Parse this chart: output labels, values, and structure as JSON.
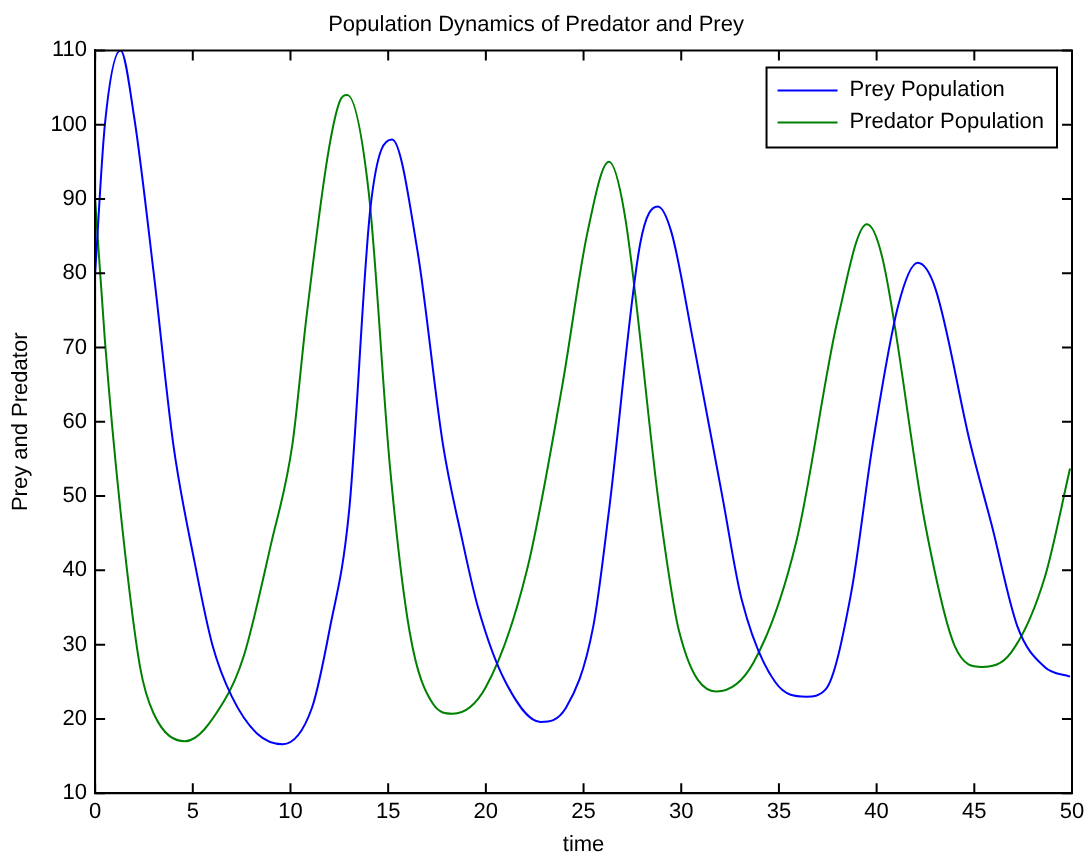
{
  "chart_data": {
    "type": "line",
    "title": "Population Dynamics of Predator and Prey",
    "xlabel": "time",
    "ylabel": "Prey and Predator",
    "xlim": [
      0,
      50
    ],
    "xticks": [
      0,
      5,
      10,
      15,
      20,
      25,
      30,
      35,
      40,
      45,
      50
    ],
    "ylim": [
      10,
      110
    ],
    "yticks": [
      10,
      20,
      30,
      40,
      50,
      60,
      70,
      80,
      90,
      100,
      110
    ],
    "grid": false,
    "legend": "top right",
    "marker": "none",
    "line_style": "solid",
    "series": [
      {
        "name": "Prey Population",
        "color": "#0000ff",
        "x": [
          0,
          0.5,
          1.3,
          2,
          3,
          4,
          5.1,
          6,
          7,
          8.3,
          9.6,
          11.1,
          12,
          13,
          14.1,
          15.2,
          16.5,
          17.8,
          18.8,
          19.6,
          21,
          22.8,
          24.1,
          25.5,
          26.3,
          27.9,
          28.8,
          29.5,
          30.6,
          32.1,
          33.1,
          34.8,
          36.4,
          37.4,
          38.7,
          39.8,
          41.1,
          42.1,
          43,
          44.8,
          45.9,
          47.2,
          48.6,
          49.9
        ],
        "values": [
          80,
          100,
          110,
          101,
          80,
          57,
          41,
          30,
          23,
          18,
          16.6,
          21.5,
          32,
          48,
          89,
          98,
          83,
          57,
          44,
          35,
          25,
          19.6,
          21.5,
          32.5,
          48,
          84,
          89,
          85.5,
          71,
          50,
          36,
          25,
          23,
          24,
          37,
          57,
          75.6,
          81.4,
          78,
          57,
          46,
          32.5,
          27,
          25.7
        ]
      },
      {
        "name": "Predator Population",
        "color": "#008000",
        "x": [
          0,
          0.5,
          1.3,
          2.3,
          3,
          4.6,
          6.6,
          7.6,
          9,
          10.1,
          10.8,
          11.9,
          12.5,
          12.9,
          14,
          15.1,
          16.1,
          17.3,
          18.3,
          20,
          22.1,
          23.9,
          25.2,
          26.3,
          27.1,
          28.9,
          29.9,
          31.8,
          33.7,
          35.9,
          38,
          39.5,
          40.3,
          42.5,
          44,
          45.4,
          46.9,
          48.6,
          49.9
        ],
        "values": [
          90,
          71,
          48,
          27,
          20.7,
          17,
          22.4,
          28.4,
          43.5,
          57,
          73.7,
          95.7,
          103,
          104,
          91,
          53.7,
          31.7,
          22,
          20.7,
          24.3,
          40,
          64.7,
          85.5,
          95,
          88,
          48,
          31.7,
          23.7,
          27.6,
          44,
          73.7,
          86.6,
          82,
          46,
          29.8,
          27,
          29,
          39,
          53.7
        ]
      }
    ]
  }
}
